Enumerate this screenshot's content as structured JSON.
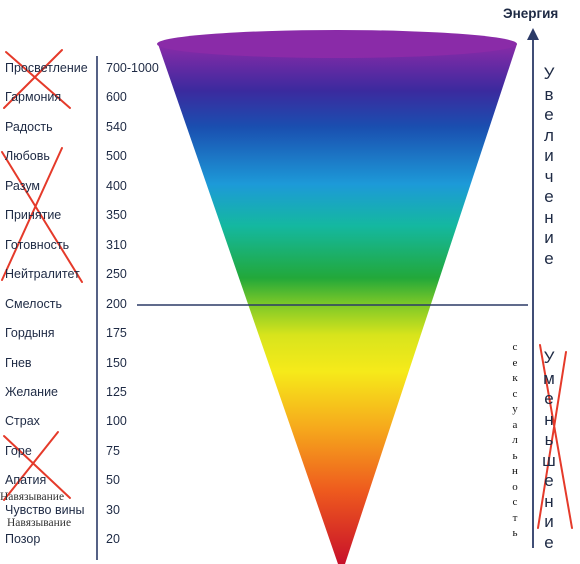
{
  "axis_title": "Энергия",
  "increase_label": "Увеличение",
  "decrease_label": "Уменьшение",
  "side_note": "сексуальность",
  "overlay_text": "Навязывание",
  "levels": [
    {
      "name": "Просветление",
      "value": "700-1000",
      "crossed": true
    },
    {
      "name": "Гармония",
      "value": "600",
      "crossed": true
    },
    {
      "name": "Радость",
      "value": "540",
      "crossed": false
    },
    {
      "name": "Любовь",
      "value": "500",
      "crossed": true
    },
    {
      "name": "Разум",
      "value": "400",
      "crossed": true
    },
    {
      "name": "Принятие",
      "value": "350",
      "crossed": true
    },
    {
      "name": "Готовность",
      "value": "310",
      "crossed": true
    },
    {
      "name": "Нейтралитет",
      "value": "250",
      "crossed": true
    },
    {
      "name": "Смелость",
      "value": "200",
      "crossed": false
    },
    {
      "name": "Гордыня",
      "value": "175",
      "crossed": false
    },
    {
      "name": "Гнев",
      "value": "150",
      "crossed": false
    },
    {
      "name": "Желание",
      "value": "125",
      "crossed": false
    },
    {
      "name": "Страх",
      "value": "100",
      "crossed": false
    },
    {
      "name": "Горе",
      "value": "75",
      "crossed": true
    },
    {
      "name": "Апатия",
      "value": "50",
      "crossed": true
    },
    {
      "name": "Чувство вины",
      "value": "30",
      "crossed": false
    },
    {
      "name": "Позор",
      "value": "20",
      "crossed": false
    }
  ],
  "colors": {
    "text": "#1e2a44",
    "axis": "#2b3a67",
    "strike": "#e53a2a",
    "spectrum": [
      "#8a2ba8",
      "#3b2a9e",
      "#1a4fb0",
      "#1d9ad8",
      "#14b8a0",
      "#22a83a",
      "#c8d81c",
      "#f6ea1a",
      "#f6a81c",
      "#ee5a1e",
      "#d4102a"
    ]
  }
}
